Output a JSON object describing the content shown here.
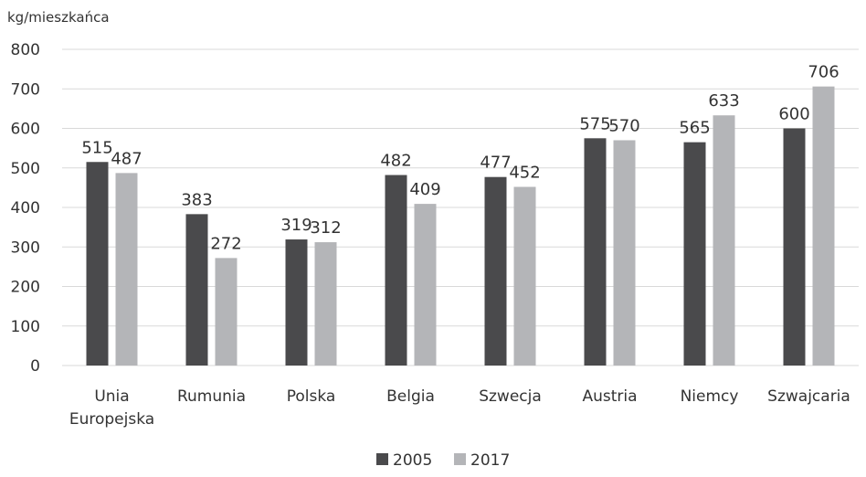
{
  "chart_data": {
    "type": "bar",
    "ylabel": "kg/mieszkańca",
    "categories": [
      [
        "Unia",
        "Europejska"
      ],
      [
        "Rumunia"
      ],
      [
        "Polska"
      ],
      [
        "Belgia"
      ],
      [
        "Szwecja"
      ],
      [
        "Austria"
      ],
      [
        "Niemcy"
      ],
      [
        "Szwajcaria"
      ]
    ],
    "series": [
      {
        "name": "2005",
        "color": "#4a4a4c",
        "values": [
          515,
          383,
          319,
          482,
          477,
          575,
          565,
          600
        ]
      },
      {
        "name": "2017",
        "color": "#b4b5b8",
        "values": [
          487,
          272,
          312,
          409,
          452,
          570,
          633,
          706
        ]
      }
    ],
    "ylim": [
      0,
      800
    ],
    "yticks": [
      0,
      100,
      200,
      300,
      400,
      500,
      600,
      700,
      800
    ],
    "grid": true,
    "legend_position": "bottom-center",
    "data_labels": true
  }
}
